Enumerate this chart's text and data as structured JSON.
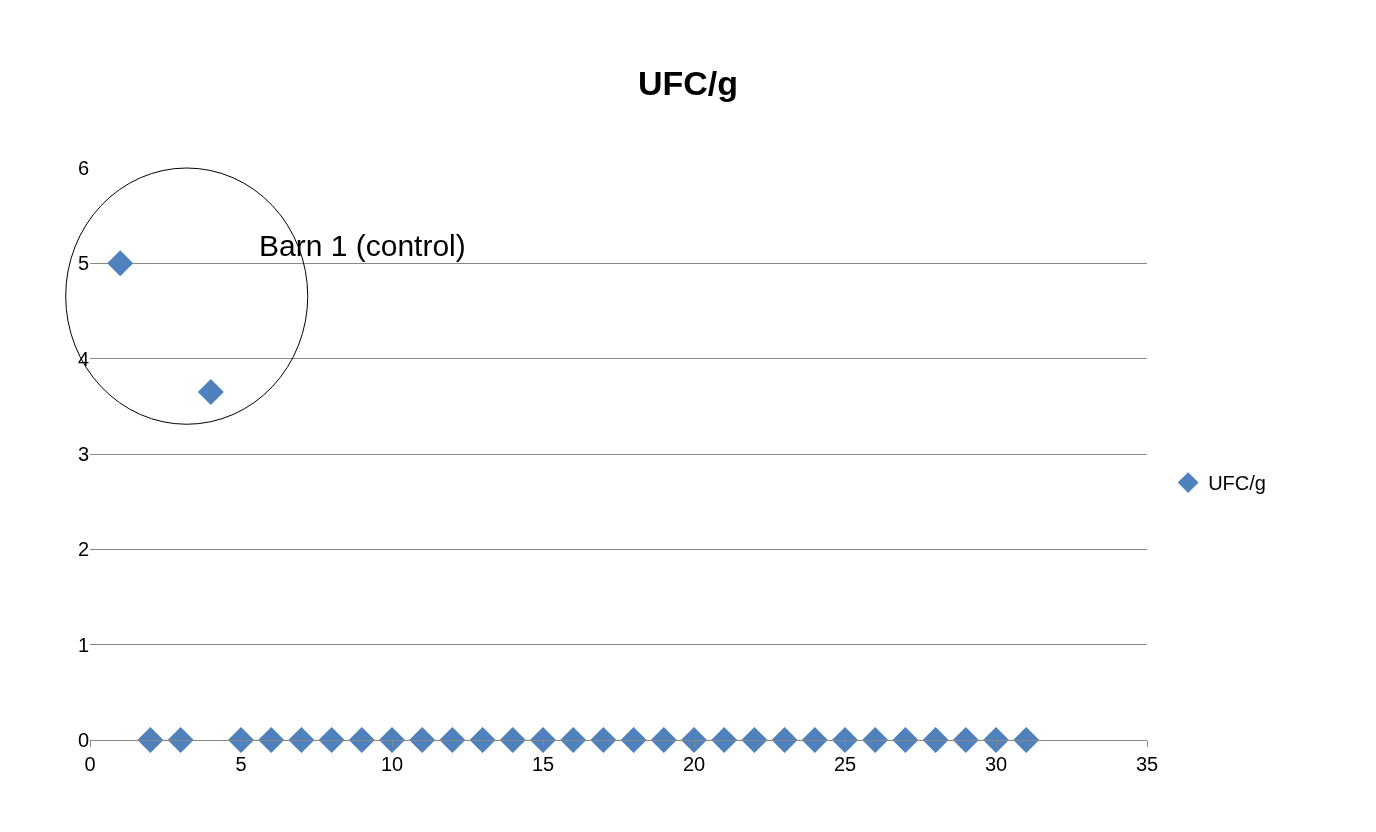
{
  "chart_data": {
    "type": "scatter",
    "title": "UFC/g",
    "x": [
      1,
      2,
      3,
      4,
      5,
      6,
      7,
      8,
      9,
      10,
      11,
      12,
      13,
      14,
      15,
      16,
      17,
      18,
      19,
      20,
      21,
      22,
      23,
      24,
      25,
      26,
      27,
      28,
      29,
      30,
      31
    ],
    "series": [
      {
        "name": "UFC/g",
        "color": "#4f81bd",
        "values": [
          5,
          0,
          0,
          3.65,
          0,
          0,
          0,
          0,
          0,
          0,
          0,
          0,
          0,
          0,
          0,
          0,
          0,
          0,
          0,
          0,
          0,
          0,
          0,
          0,
          0,
          0,
          0,
          0,
          0,
          0,
          0
        ]
      }
    ],
    "annotations": [
      "Barn 1 (control)"
    ],
    "xlim": [
      0,
      35
    ],
    "xticks": [
      0,
      5,
      10,
      15,
      20,
      25,
      30,
      35
    ],
    "ylim": [
      0,
      6
    ],
    "yticks": [
      0,
      1,
      2,
      3,
      4,
      5,
      6
    ],
    "grid": "y",
    "legend": "right",
    "marker": "diamond"
  }
}
